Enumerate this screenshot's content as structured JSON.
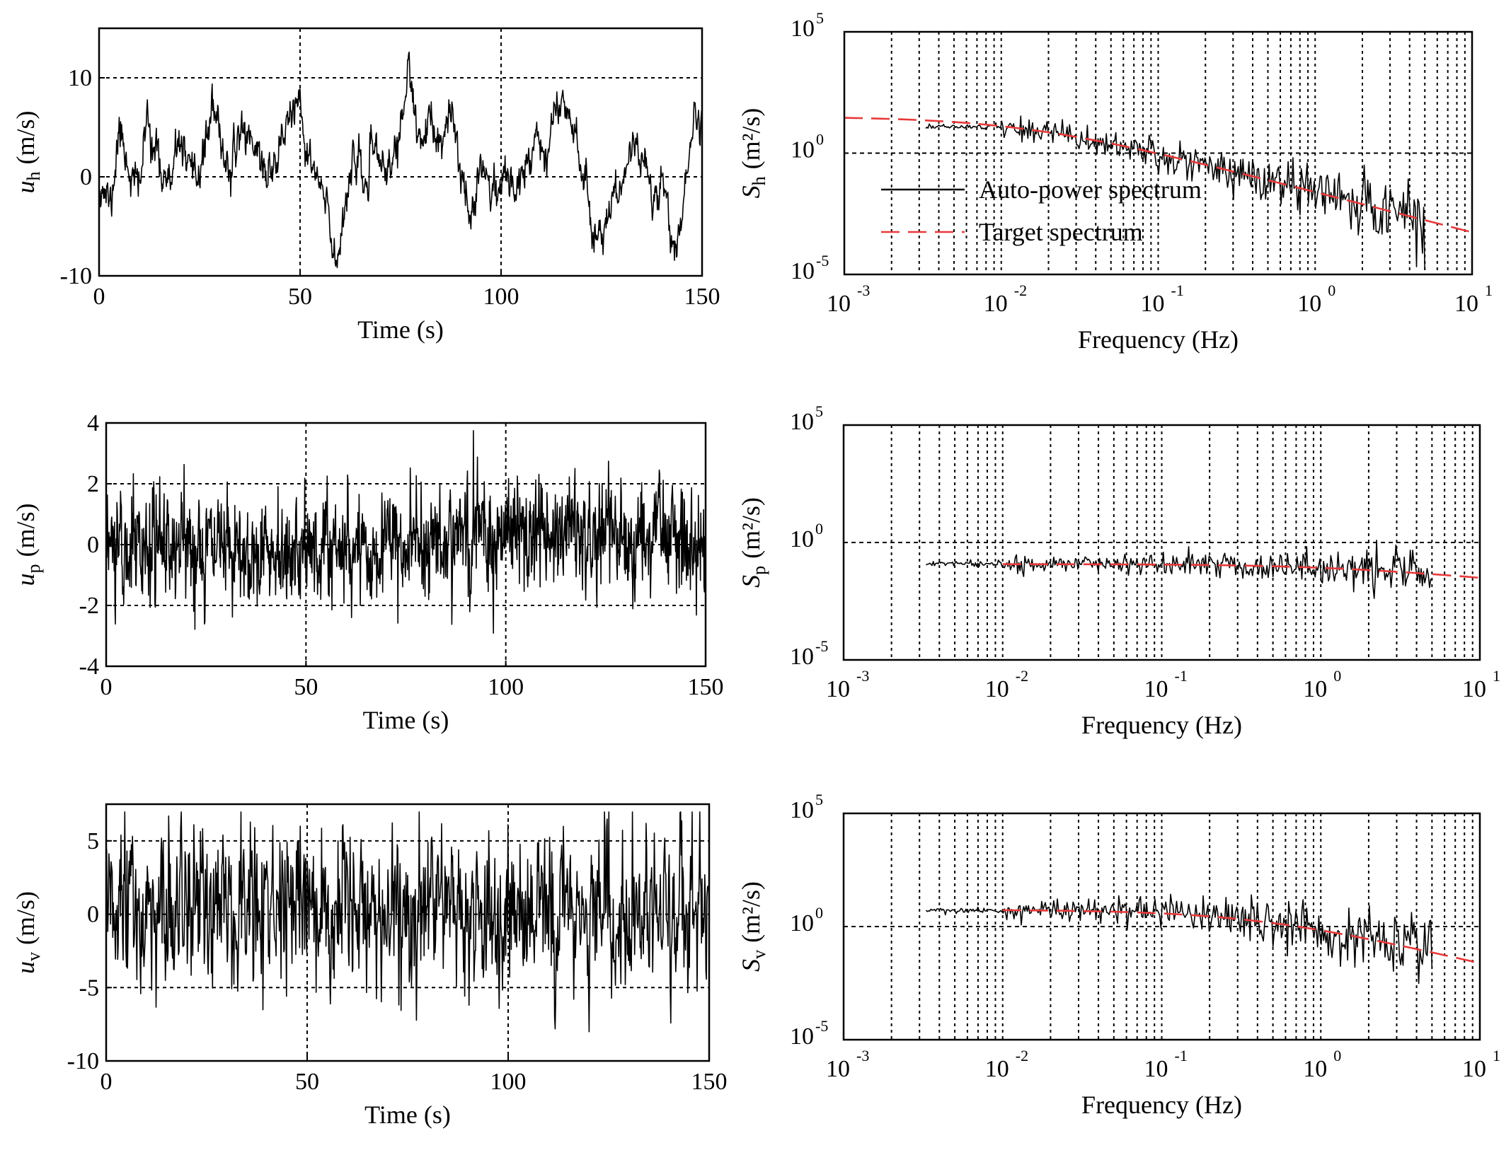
{
  "figure": {
    "colors": {
      "signal": "#000000",
      "target": "#e8393a",
      "grid": "#000000",
      "background": "#ffffff"
    },
    "legend_entries": [
      "Auto-power spectrum",
      "Target spectrum"
    ]
  },
  "chart_data": [
    {
      "id": "th",
      "type": "line",
      "kind": "time",
      "xlabel": "Time (s)",
      "ylabel_main": "u",
      "ylabel_sub": "h",
      "ylabel_unit": "(m/s)",
      "xlim": [
        0,
        150
      ],
      "ylim": [
        -10,
        15
      ],
      "xticks": [
        0,
        50,
        100,
        150
      ],
      "xtick_labels": [
        "0",
        "50",
        "100",
        "150"
      ],
      "yticks": [
        -10,
        0,
        10
      ],
      "ytick_labels": [
        "-10",
        "0",
        "10"
      ],
      "grid_x": [
        50,
        100
      ],
      "grid_y": [
        0,
        10
      ],
      "series": [
        {
          "name": "u_h",
          "seed": 11,
          "mode": "lowpass",
          "sigma": 4.3,
          "roughness": 0.9,
          "anchors": [
            [
              0,
              0
            ],
            [
              3,
              -3
            ],
            [
              5,
              5
            ],
            [
              8,
              0
            ],
            [
              10,
              -1
            ],
            [
              12,
              6
            ],
            [
              15,
              1
            ],
            [
              18,
              -1
            ],
            [
              20,
              4
            ],
            [
              23,
              -1
            ],
            [
              26,
              2
            ],
            [
              28,
              7
            ],
            [
              30,
              4
            ],
            [
              33,
              0
            ],
            [
              35,
              5
            ],
            [
              38,
              4
            ],
            [
              42,
              0
            ],
            [
              45,
              3
            ],
            [
              48,
              7
            ],
            [
              50,
              6
            ],
            [
              52,
              2
            ],
            [
              55,
              -1
            ],
            [
              57,
              -4
            ],
            [
              59,
              -9
            ],
            [
              61,
              -3
            ],
            [
              63,
              2
            ],
            [
              66,
              -1
            ],
            [
              69,
              3
            ],
            [
              72,
              0
            ],
            [
              75,
              5
            ],
            [
              77,
              11
            ],
            [
              79,
              4
            ],
            [
              82,
              5
            ],
            [
              85,
              3
            ],
            [
              88,
              6
            ],
            [
              90,
              1
            ],
            [
              92,
              -4
            ],
            [
              95,
              2
            ],
            [
              98,
              -2
            ],
            [
              100,
              0
            ],
            [
              103,
              -1
            ],
            [
              106,
              1
            ],
            [
              109,
              5
            ],
            [
              111,
              2
            ],
            [
              113,
              6
            ],
            [
              116,
              8
            ],
            [
              119,
              4
            ],
            [
              121,
              -1
            ],
            [
              123,
              -6
            ],
            [
              126,
              -5
            ],
            [
              128,
              -2
            ],
            [
              130,
              -1
            ],
            [
              133,
              4
            ],
            [
              136,
              1
            ],
            [
              138,
              -3
            ],
            [
              140,
              1
            ],
            [
              142,
              -5
            ],
            [
              144,
              -8
            ],
            [
              146,
              0
            ],
            [
              148,
              6
            ],
            [
              150,
              5
            ]
          ]
        }
      ]
    },
    {
      "id": "sh",
      "type": "line",
      "kind": "spectrum",
      "xlabel": "Frequency (Hz)",
      "ylabel_main": "S",
      "ylabel_sub": "h",
      "ylabel_unit": "(m²/s)",
      "xlim": [
        0.001,
        10
      ],
      "ylim": [
        1e-05,
        100000
      ],
      "xscale": "log",
      "yscale": "log",
      "xtick_exps": [
        -3,
        -2,
        -1,
        0,
        1
      ],
      "ytick_exps": [
        -5,
        0,
        5
      ],
      "grid_y_exps": [
        0
      ],
      "legend": true,
      "target": {
        "f0": 0.0138,
        "A": 32,
        "p": 1.6667,
        "xmin": 0.001,
        "xmax": 10
      },
      "series": [
        {
          "name": "Auto-power spectrum",
          "seed": 21,
          "fmin": 0.0033,
          "fmax": 5.0,
          "N": 420,
          "scale": 0.95,
          "lowScatter": 0.3,
          "highScatter": 1.6,
          "bottom_drop": true
        }
      ]
    },
    {
      "id": "tp",
      "type": "line",
      "kind": "time",
      "xlabel": "Time (s)",
      "ylabel_main": "u",
      "ylabel_sub": "p",
      "ylabel_unit": "(m/s)",
      "xlim": [
        0,
        150
      ],
      "ylim": [
        -4,
        4
      ],
      "xticks": [
        0,
        50,
        100,
        150
      ],
      "xtick_labels": [
        "0",
        "50",
        "100",
        "150"
      ],
      "yticks": [
        -4,
        -2,
        0,
        2,
        4
      ],
      "ytick_labels": [
        "-4",
        "-2",
        "0",
        "2",
        "4"
      ],
      "grid_x": [
        50,
        100
      ],
      "grid_y": [
        -2,
        0,
        2
      ],
      "series": [
        {
          "name": "u_p",
          "seed": 31,
          "mode": "noise",
          "sigma": 0.85,
          "n": 1500,
          "anchors": [
            [
              0,
              0
            ],
            [
              20,
              -0.1
            ],
            [
              50,
              -0.2
            ],
            [
              80,
              0.1
            ],
            [
              100,
              0.3
            ],
            [
              120,
              0.4
            ],
            [
              150,
              0.1
            ]
          ]
        }
      ]
    },
    {
      "id": "sp",
      "type": "line",
      "kind": "spectrum",
      "xlabel": "Frequency (Hz)",
      "ylabel_main": "S",
      "ylabel_sub": "p",
      "ylabel_unit": "(m²/s)",
      "xlim": [
        0.001,
        10
      ],
      "ylim": [
        1e-05,
        100000
      ],
      "xscale": "log",
      "yscale": "log",
      "xtick_exps": [
        -3,
        -2,
        -1,
        0,
        1
      ],
      "ytick_exps": [
        -5,
        0,
        5
      ],
      "grid_y_exps": [
        0
      ],
      "legend": false,
      "target": {
        "f0": 1.2,
        "A": 0.12,
        "p": 0.6,
        "xmin": 0.01,
        "xmax": 10
      },
      "series": [
        {
          "name": "Auto-power spectrum",
          "seed": 41,
          "fmin": 0.0033,
          "fmax": 5.0,
          "N": 420,
          "scale": 1.05,
          "lowScatter": 0.25,
          "highScatter": 0.9,
          "bottom_drop": false
        }
      ]
    },
    {
      "id": "tw",
      "type": "line",
      "kind": "time",
      "xlabel": "Time (s)",
      "ylabel_main": "u",
      "ylabel_sub": "v",
      "ylabel_unit": "(m/s)",
      "xlim": [
        0,
        150
      ],
      "ylim": [
        -10,
        7.5
      ],
      "xticks": [
        0,
        50,
        100,
        150
      ],
      "xtick_labels": [
        "0",
        "50",
        "100",
        "150"
      ],
      "yticks": [
        -10,
        -5,
        0,
        5
      ],
      "ytick_labels": [
        "-10",
        "-5",
        "0",
        "5"
      ],
      "grid_x": [
        50,
        100
      ],
      "grid_y": [
        -5,
        0,
        5
      ],
      "series": [
        {
          "name": "u_v",
          "seed": 51,
          "mode": "noise",
          "sigma": 2.6,
          "n": 1100,
          "anchors": [
            [
              0,
              0
            ],
            [
              30,
              0.2
            ],
            [
              60,
              -0.3
            ],
            [
              90,
              0
            ],
            [
              120,
              0.5
            ],
            [
              150,
              0
            ]
          ]
        }
      ]
    },
    {
      "id": "sw",
      "type": "line",
      "kind": "spectrum",
      "xlabel": "Frequency (Hz)",
      "ylabel_main": "S",
      "ylabel_sub": "v",
      "ylabel_unit": "(m²/s)",
      "xlim": [
        0.001,
        10
      ],
      "ylim": [
        1e-05,
        100000
      ],
      "xscale": "log",
      "yscale": "log",
      "xtick_exps": [
        -3,
        -2,
        -1,
        0,
        1
      ],
      "ytick_exps": [
        -5,
        0,
        5
      ],
      "grid_y_exps": [
        0
      ],
      "legend": false,
      "target": {
        "f0": 0.4,
        "A": 5.5,
        "p": 1.6667,
        "xmin": 0.01,
        "xmax": 10
      },
      "series": [
        {
          "name": "Auto-power spectrum",
          "seed": 61,
          "fmin": 0.0033,
          "fmax": 5.0,
          "N": 420,
          "scale": 1.0,
          "lowScatter": 0.3,
          "highScatter": 1.4,
          "bottom_drop": false
        }
      ]
    }
  ]
}
